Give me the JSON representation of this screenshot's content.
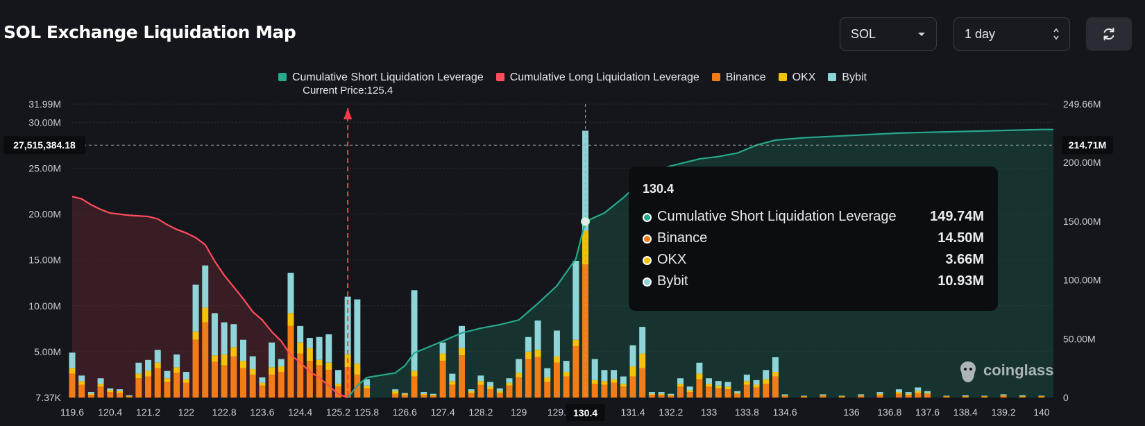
{
  "page": {
    "title": "SOL Exchange Liquidation Map"
  },
  "controls": {
    "coin": "SOL",
    "range": "1 day",
    "refresh_icon": "refresh-icon"
  },
  "colors": {
    "short": "#26a98d",
    "long": "#ff4d5a",
    "binance": "#f27c17",
    "okx": "#f4c10b",
    "bybit": "#8ed4d8",
    "background": "#15161b"
  },
  "legend": [
    {
      "label": "Cumulative Short Liquidation Leverage",
      "color": "#26a98d"
    },
    {
      "label": "Cumulative Long Liquidation Leverage",
      "color": "#ff4d5a"
    },
    {
      "label": "Binance",
      "color": "#f27c17"
    },
    {
      "label": "OKX",
      "color": "#f4c10b"
    },
    {
      "label": "Bybit",
      "color": "#8ed4d8"
    }
  ],
  "current_price_label": "Current Price:125.4",
  "crosshair": {
    "left_value": "27,515,384.18",
    "right_value": "214.71M",
    "x_label": "130.4"
  },
  "tooltip": {
    "title": "130.4",
    "rows": [
      {
        "label": "Cumulative Short Liquidation Leverage",
        "value": "149.74M",
        "color": "#26a98d"
      },
      {
        "label": "Binance",
        "value": "14.50M",
        "color": "#f27c17"
      },
      {
        "label": "OKX",
        "value": "3.66M",
        "color": "#f4c10b"
      },
      {
        "label": "Bybit",
        "value": "10.93M",
        "color": "#8ed4d8"
      }
    ]
  },
  "watermark": "coinglass",
  "chart_data": {
    "type": "bar",
    "title": "SOL Exchange Liquidation Map",
    "current_price": 125.4,
    "hover_price": 130.4,
    "x_ticks": [
      "119.6",
      "120.4",
      "121.2",
      "122",
      "122.8",
      "123.6",
      "124.4",
      "125.2",
      "125.8",
      "126.6",
      "127.4",
      "128.2",
      "129",
      "129.",
      "130.4",
      "131.4",
      "132.2",
      "133",
      "133.8",
      "134.6",
      "136",
      "136.8",
      "137.6",
      "138.4",
      "139.2",
      "140"
    ],
    "y_left_ticks": [
      "7.37K",
      "5.00M",
      "10.00M",
      "15.00M",
      "20.00M",
      "25.00M",
      "30.00M",
      "31.99M"
    ],
    "y_left_values": [
      0,
      5,
      10,
      15,
      20,
      25,
      30,
      31.99
    ],
    "y_right_ticks": [
      "0",
      "50.00M",
      "100.00M",
      "150.00M",
      "200.00M",
      "249.66M"
    ],
    "y_right_values": [
      0,
      50,
      100,
      150,
      200,
      249.66
    ],
    "ylim_left": [
      0,
      31.99
    ],
    "ylim_right": [
      0,
      249.66
    ],
    "x_range": [
      119.6,
      140.25
    ],
    "bar_units": "M",
    "bars": [
      {
        "x": 119.6,
        "binance": 2.6,
        "okx": 0.6,
        "bybit": 1.7
      },
      {
        "x": 119.8,
        "binance": 1.4,
        "okx": 0.4,
        "bybit": 0.6
      },
      {
        "x": 120.0,
        "binance": 0.3,
        "okx": 0.1,
        "bybit": 0.2
      },
      {
        "x": 120.2,
        "binance": 1.2,
        "okx": 0.3,
        "bybit": 0.6
      },
      {
        "x": 120.4,
        "binance": 0.6,
        "okx": 0.2,
        "bybit": 0.2
      },
      {
        "x": 120.6,
        "binance": 0.5,
        "okx": 0.2,
        "bybit": 0.2
      },
      {
        "x": 120.8,
        "binance": 0.1,
        "okx": 0.05,
        "bybit": 0.1
      },
      {
        "x": 121.0,
        "binance": 2.1,
        "okx": 0.5,
        "bybit": 1.2
      },
      {
        "x": 121.2,
        "binance": 2.3,
        "okx": 0.6,
        "bybit": 1.2
      },
      {
        "x": 121.4,
        "binance": 3.2,
        "okx": 0.6,
        "bybit": 1.4
      },
      {
        "x": 121.6,
        "binance": 1.7,
        "okx": 0.4,
        "bybit": 0.8
      },
      {
        "x": 121.8,
        "binance": 2.7,
        "okx": 0.6,
        "bybit": 1.4
      },
      {
        "x": 122.0,
        "binance": 1.6,
        "okx": 0.4,
        "bybit": 0.8
      },
      {
        "x": 122.2,
        "binance": 6.3,
        "okx": 0.9,
        "bybit": 5.1
      },
      {
        "x": 122.4,
        "binance": 8.2,
        "okx": 1.6,
        "bybit": 4.6
      },
      {
        "x": 122.6,
        "binance": 3.9,
        "okx": 0.7,
        "bybit": 4.6
      },
      {
        "x": 122.8,
        "binance": 3.5,
        "okx": 1.2,
        "bybit": 3.5
      },
      {
        "x": 123.0,
        "binance": 4.5,
        "okx": 1.0,
        "bybit": 2.5
      },
      {
        "x": 123.2,
        "binance": 3.2,
        "okx": 0.8,
        "bybit": 2.3
      },
      {
        "x": 123.4,
        "binance": 2.5,
        "okx": 0.6,
        "bybit": 1.4
      },
      {
        "x": 123.6,
        "binance": 1.3,
        "okx": 0.3,
        "bybit": 0.6
      },
      {
        "x": 123.8,
        "binance": 2.5,
        "okx": 0.8,
        "bybit": 2.7
      },
      {
        "x": 124.0,
        "binance": 2.8,
        "okx": 0.6,
        "bybit": 0.8
      },
      {
        "x": 124.2,
        "binance": 7.8,
        "okx": 1.4,
        "bybit": 4.4
      },
      {
        "x": 124.4,
        "binance": 4.8,
        "okx": 1.2,
        "bybit": 1.8
      },
      {
        "x": 124.6,
        "binance": 4.0,
        "okx": 1.4,
        "bybit": 1.1
      },
      {
        "x": 124.8,
        "binance": 3.5,
        "okx": 0.6,
        "bybit": 2.5
      },
      {
        "x": 125.0,
        "binance": 3.0,
        "okx": 0.8,
        "bybit": 3.1
      },
      {
        "x": 125.2,
        "binance": 1.2,
        "okx": 0.3,
        "bybit": 1.5
      },
      {
        "x": 125.4,
        "binance": 3.3,
        "okx": 1.4,
        "bybit": 6.3
      },
      {
        "x": 125.6,
        "binance": 2.5,
        "okx": 1.2,
        "bybit": 7.0
      },
      {
        "x": 125.8,
        "binance": 1.0,
        "okx": 0.3,
        "bybit": 0.7
      },
      {
        "x": 126.4,
        "binance": 0.4,
        "okx": 0.3,
        "bybit": 0.2
      },
      {
        "x": 126.6,
        "binance": 0.3,
        "okx": 0.1,
        "bybit": 0.1
      },
      {
        "x": 126.8,
        "binance": 2.3,
        "okx": 0.6,
        "bybit": 8.8
      },
      {
        "x": 127.0,
        "binance": 0.3,
        "okx": 0.1,
        "bybit": 0.2
      },
      {
        "x": 127.2,
        "binance": 0.2,
        "okx": 0.1,
        "bybit": 0.1
      },
      {
        "x": 127.4,
        "binance": 4.0,
        "okx": 0.8,
        "bybit": 1.2
      },
      {
        "x": 127.6,
        "binance": 1.4,
        "okx": 0.4,
        "bybit": 0.8
      },
      {
        "x": 127.8,
        "binance": 4.6,
        "okx": 0.8,
        "bybit": 2.4
      },
      {
        "x": 128.0,
        "binance": 0.5,
        "okx": 0.2,
        "bybit": 0.2
      },
      {
        "x": 128.2,
        "binance": 1.4,
        "okx": 0.4,
        "bybit": 0.6
      },
      {
        "x": 128.4,
        "binance": 0.9,
        "okx": 0.3,
        "bybit": 0.5
      },
      {
        "x": 128.6,
        "binance": 0.5,
        "okx": 0.2,
        "bybit": 0.3
      },
      {
        "x": 128.8,
        "binance": 1.3,
        "okx": 0.3,
        "bybit": 0.5
      },
      {
        "x": 129.0,
        "binance": 2.2,
        "okx": 0.5,
        "bybit": 1.5
      },
      {
        "x": 129.2,
        "binance": 4.2,
        "okx": 0.8,
        "bybit": 1.6
      },
      {
        "x": 129.4,
        "binance": 4.4,
        "okx": 0.8,
        "bybit": 3.2
      },
      {
        "x": 129.6,
        "binance": 1.7,
        "okx": 0.5,
        "bybit": 1.0
      },
      {
        "x": 129.8,
        "binance": 3.8,
        "okx": 0.7,
        "bybit": 2.8
      },
      {
        "x": 130.0,
        "binance": 2.3,
        "okx": 0.5,
        "bybit": 1.2
      },
      {
        "x": 130.2,
        "binance": 5.6,
        "okx": 0.7,
        "bybit": 8.6
      },
      {
        "x": 130.4,
        "binance": 14.5,
        "okx": 3.66,
        "bybit": 10.93
      },
      {
        "x": 130.6,
        "binance": 1.5,
        "okx": 0.4,
        "bybit": 2.3
      },
      {
        "x": 130.8,
        "binance": 1.4,
        "okx": 0.4,
        "bybit": 1.2
      },
      {
        "x": 131.0,
        "binance": 1.6,
        "okx": 0.4,
        "bybit": 1.0
      },
      {
        "x": 131.2,
        "binance": 1.2,
        "okx": 0.3,
        "bybit": 0.8
      },
      {
        "x": 131.4,
        "binance": 2.3,
        "okx": 1.1,
        "bybit": 2.3
      },
      {
        "x": 131.6,
        "binance": 3.2,
        "okx": 1.6,
        "bybit": 2.9
      },
      {
        "x": 131.8,
        "binance": 0.3,
        "okx": 0.1,
        "bybit": 0.2
      },
      {
        "x": 132.0,
        "binance": 0.3,
        "okx": 0.1,
        "bybit": 0.2
      },
      {
        "x": 132.2,
        "binance": 0.2,
        "okx": 0.1,
        "bybit": 0.1
      },
      {
        "x": 132.4,
        "binance": 1.2,
        "okx": 0.3,
        "bybit": 0.6
      },
      {
        "x": 132.6,
        "binance": 0.6,
        "okx": 0.2,
        "bybit": 0.4
      },
      {
        "x": 132.8,
        "binance": 2.0,
        "okx": 0.6,
        "bybit": 1.2
      },
      {
        "x": 133.0,
        "binance": 1.2,
        "okx": 0.3,
        "bybit": 0.6
      },
      {
        "x": 133.2,
        "binance": 1.0,
        "okx": 0.3,
        "bybit": 0.5
      },
      {
        "x": 133.4,
        "binance": 0.9,
        "okx": 0.3,
        "bybit": 0.5
      },
      {
        "x": 133.6,
        "binance": 0.4,
        "okx": 0.1,
        "bybit": 0.2
      },
      {
        "x": 133.8,
        "binance": 1.4,
        "okx": 0.4,
        "bybit": 0.7
      },
      {
        "x": 134.0,
        "binance": 1.1,
        "okx": 0.3,
        "bybit": 0.5
      },
      {
        "x": 134.2,
        "binance": 1.5,
        "okx": 0.5,
        "bybit": 1.0
      },
      {
        "x": 134.4,
        "binance": 2.3,
        "okx": 0.5,
        "bybit": 1.6
      },
      {
        "x": 134.6,
        "binance": 0.2,
        "okx": 0.05,
        "bybit": 0.1
      },
      {
        "x": 135.0,
        "binance": 0.1,
        "okx": 0.05,
        "bybit": 0.05
      },
      {
        "x": 135.4,
        "binance": 0.2,
        "okx": 0.05,
        "bybit": 0.1
      },
      {
        "x": 135.8,
        "binance": 0.1,
        "okx": 0.05,
        "bybit": 0.05
      },
      {
        "x": 136.2,
        "binance": 0.2,
        "okx": 0.05,
        "bybit": 0.1
      },
      {
        "x": 136.6,
        "binance": 0.3,
        "okx": 0.1,
        "bybit": 0.2
      },
      {
        "x": 137.0,
        "binance": 0.4,
        "okx": 0.2,
        "bybit": 0.3
      },
      {
        "x": 137.2,
        "binance": 0.3,
        "okx": 0.1,
        "bybit": 0.2
      },
      {
        "x": 137.4,
        "binance": 0.5,
        "okx": 0.2,
        "bybit": 0.4
      },
      {
        "x": 137.6,
        "binance": 0.4,
        "okx": 0.1,
        "bybit": 0.2
      },
      {
        "x": 138.0,
        "binance": 0.1,
        "okx": 0.05,
        "bybit": 0.05
      },
      {
        "x": 138.4,
        "binance": 0.1,
        "okx": 0.05,
        "bybit": 0.1
      },
      {
        "x": 138.8,
        "binance": 0.1,
        "okx": 0.05,
        "bybit": 0.05
      },
      {
        "x": 139.2,
        "binance": 0.2,
        "okx": 0.05,
        "bybit": 0.1
      },
      {
        "x": 139.6,
        "binance": 0.1,
        "okx": 0.05,
        "bybit": 0.1
      },
      {
        "x": 140.0,
        "binance": 0.1,
        "okx": 0.05,
        "bybit": 0.05
      }
    ],
    "short_cumulative": {
      "name": "Cumulative Short Liquidation Leverage",
      "axis": "right",
      "points": [
        [
          125.4,
          0
        ],
        [
          125.6,
          10
        ],
        [
          125.8,
          17
        ],
        [
          126.4,
          21
        ],
        [
          126.6,
          27
        ],
        [
          126.8,
          38
        ],
        [
          127.4,
          48
        ],
        [
          127.8,
          55
        ],
        [
          128.2,
          59
        ],
        [
          128.6,
          62
        ],
        [
          129.0,
          66
        ],
        [
          129.4,
          80
        ],
        [
          129.8,
          95
        ],
        [
          130.2,
          118
        ],
        [
          130.4,
          149.74
        ],
        [
          130.8,
          157
        ],
        [
          131.2,
          170
        ],
        [
          131.6,
          185
        ],
        [
          132.0,
          195
        ],
        [
          132.4,
          199
        ],
        [
          132.8,
          203
        ],
        [
          133.2,
          205
        ],
        [
          133.6,
          208
        ],
        [
          134.0,
          214.71
        ],
        [
          134.4,
          219
        ],
        [
          135.0,
          221
        ],
        [
          136.0,
          223
        ],
        [
          137.0,
          225
        ],
        [
          138.0,
          226
        ],
        [
          139.0,
          227
        ],
        [
          140.0,
          228
        ],
        [
          140.25,
          228
        ]
      ]
    },
    "long_cumulative": {
      "name": "Cumulative Long Liquidation Leverage",
      "axis": "right",
      "points": [
        [
          119.6,
          171
        ],
        [
          119.8,
          169
        ],
        [
          120.0,
          164
        ],
        [
          120.2,
          160
        ],
        [
          120.4,
          157
        ],
        [
          120.8,
          155
        ],
        [
          121.2,
          154
        ],
        [
          121.4,
          152
        ],
        [
          121.6,
          147
        ],
        [
          121.8,
          143
        ],
        [
          122.0,
          140
        ],
        [
          122.2,
          136
        ],
        [
          122.4,
          130
        ],
        [
          122.6,
          116
        ],
        [
          122.8,
          104
        ],
        [
          123.0,
          94
        ],
        [
          123.2,
          84
        ],
        [
          123.4,
          73
        ],
        [
          123.6,
          66
        ],
        [
          123.8,
          56
        ],
        [
          124.0,
          48
        ],
        [
          124.2,
          36
        ],
        [
          124.4,
          30
        ],
        [
          124.6,
          22
        ],
        [
          124.8,
          17
        ],
        [
          125.0,
          10
        ],
        [
          125.2,
          3
        ],
        [
          125.4,
          0
        ]
      ]
    }
  }
}
